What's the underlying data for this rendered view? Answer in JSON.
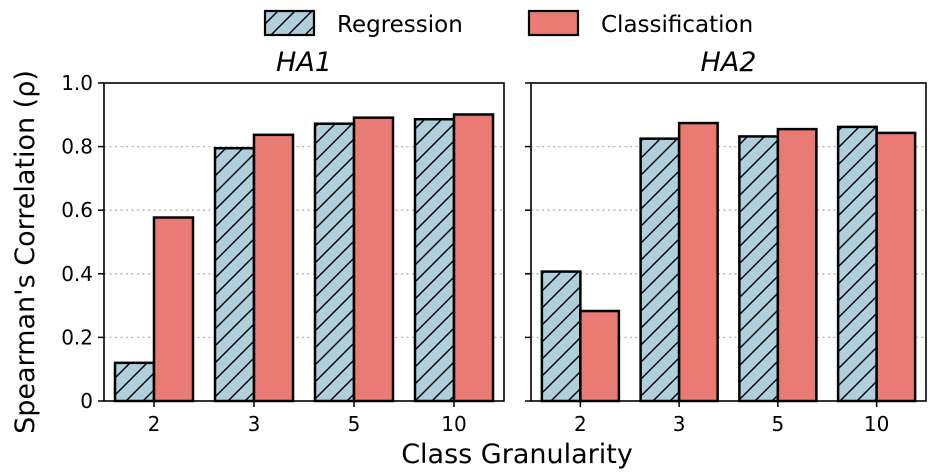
{
  "chart_data": {
    "type": "bar",
    "xlabel": "Class Granularity",
    "ylabel": "Spearman's Correlation (ρ)",
    "ylim": [
      0,
      1.0
    ],
    "yticks": [
      "0",
      "0.2",
      "0.4",
      "0.6",
      "0.8",
      "1.0"
    ],
    "grid": "horizontal dotted",
    "legend": {
      "placement": "top-center",
      "entries": [
        {
          "name": "Regression",
          "color": "#aecfdb",
          "hatch": true
        },
        {
          "name": "Classification",
          "color": "#ea7a74",
          "hatch": false
        }
      ]
    },
    "panels": [
      {
        "title": "HA1",
        "categories": [
          "2",
          "3",
          "5",
          "10"
        ],
        "series": [
          {
            "name": "Regression",
            "values": [
              0.12,
              0.795,
              0.872,
              0.886
            ]
          },
          {
            "name": "Classification",
            "values": [
              0.577,
              0.837,
              0.891,
              0.901
            ]
          }
        ]
      },
      {
        "title": "HA2",
        "categories": [
          "2",
          "3",
          "5",
          "10"
        ],
        "series": [
          {
            "name": "Regression",
            "values": [
              0.407,
              0.825,
              0.832,
              0.862
            ]
          },
          {
            "name": "Classification",
            "values": [
              0.283,
              0.874,
              0.855,
              0.843
            ]
          }
        ]
      }
    ]
  }
}
